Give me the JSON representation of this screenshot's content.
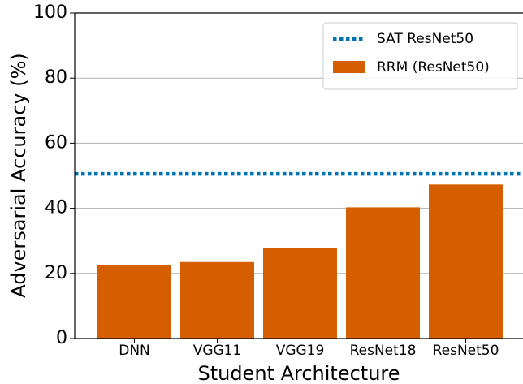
{
  "chart_data": {
    "type": "bar",
    "x_label": "Student Architecture",
    "y_label": "Adversarial Accuracy (%)",
    "categories": [
      "DNN",
      "VGG11",
      "VGG19",
      "ResNet18",
      "ResNet50"
    ],
    "series": [
      {
        "name": "RRM (ResNet50)",
        "color": "#d55e00",
        "values": [
          22.7,
          23.5,
          27.8,
          40.3,
          47.3
        ]
      }
    ],
    "reference_line": {
      "name": "SAT ResNet50",
      "color": "#0173b2",
      "value": 50.6,
      "style": "dotted"
    },
    "ylim": [
      0,
      100
    ],
    "yticks": [
      0,
      20,
      40,
      60,
      80,
      100
    ],
    "grid": true,
    "legend": "upper right"
  }
}
